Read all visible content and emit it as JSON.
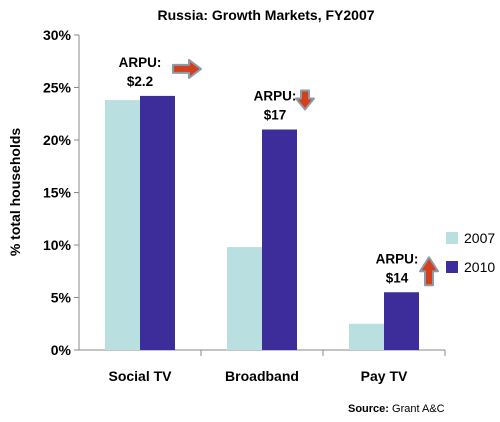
{
  "chart_data": {
    "type": "bar",
    "title": "Russia: Growth Markets, FY2007",
    "ylabel": "% total households",
    "xlabel": "",
    "categories": [
      "Social TV",
      "Broadband",
      "Pay TV"
    ],
    "series": [
      {
        "name": "2007",
        "values": [
          0.238,
          0.098,
          0.025
        ],
        "color": "#b9dfe1"
      },
      {
        "name": "2010",
        "values": [
          0.242,
          0.21,
          0.055
        ],
        "color": "#3c2d9b"
      }
    ],
    "ylim": [
      0,
      0.3
    ],
    "yticks": [
      0,
      0.05,
      0.1,
      0.15,
      0.2,
      0.25,
      0.3
    ],
    "ytick_labels": [
      "0%",
      "5%",
      "10%",
      "15%",
      "20%",
      "25%",
      "30%"
    ],
    "grid": false,
    "legend_position": "right",
    "annotations": [
      {
        "category": "Social TV",
        "lines": [
          "ARPU:",
          "$2.2"
        ],
        "arrow": "right"
      },
      {
        "category": "Broadband",
        "lines": [
          "ARPU:",
          "$17"
        ],
        "arrow": "down"
      },
      {
        "category": "Pay TV",
        "lines": [
          "ARPU:",
          "$14"
        ],
        "arrow": "up"
      }
    ],
    "arrow_colors": {
      "fill": "#d2401c",
      "outline": "#8e9aa6"
    }
  },
  "source": {
    "label": "Source:",
    "text": "Grant A&C"
  }
}
